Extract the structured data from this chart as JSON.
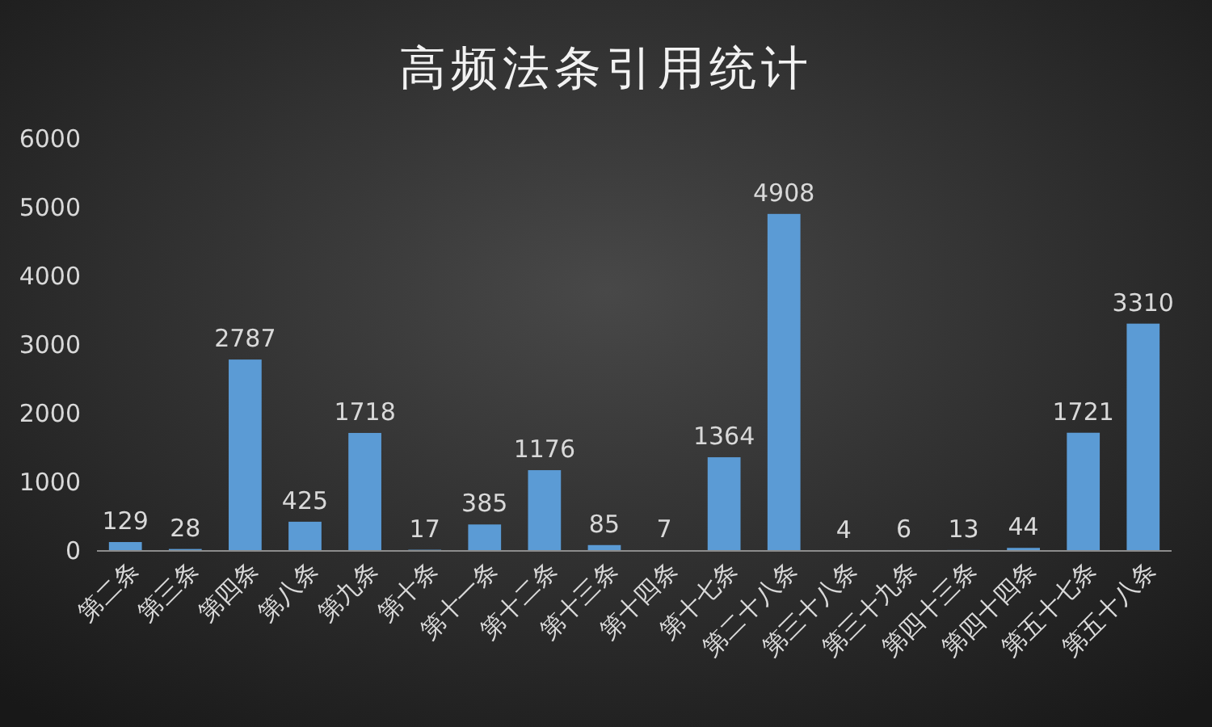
{
  "chart_data": {
    "type": "bar",
    "title": "高频法条引用统计",
    "categories": [
      "第二条",
      "第三条",
      "第四条",
      "第八条",
      "第九条",
      "第十条",
      "第十一条",
      "第十二条",
      "第十三条",
      "第十四条",
      "第十七条",
      "第二十八条",
      "第三十八条",
      "第三十九条",
      "第四十三条",
      "第四十四条",
      "第五十七条",
      "第五十八条"
    ],
    "values": [
      129,
      28,
      2787,
      425,
      1718,
      17,
      385,
      1176,
      85,
      7,
      1364,
      4908,
      4,
      6,
      13,
      44,
      1721,
      3310
    ],
    "color": "#5b9bd5",
    "ylim": [
      0,
      6000
    ],
    "yticks": [
      0,
      1000,
      2000,
      3000,
      4000,
      5000,
      6000
    ],
    "grid": false,
    "data_labels": true
  }
}
